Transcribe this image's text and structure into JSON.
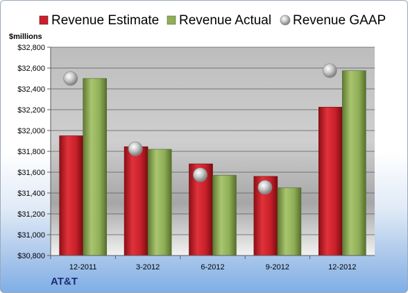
{
  "company": "AT&T",
  "chart_data": {
    "type": "bar",
    "ylabel": "$millions",
    "categories": [
      "12-2011",
      "3-2012",
      "6-2012",
      "9-2012",
      "12-2012"
    ],
    "series": [
      {
        "name": "Revenue Estimate",
        "type": "bar",
        "color": "#c8202a",
        "values": [
          31950,
          31845,
          31680,
          31560,
          32225
        ]
      },
      {
        "name": "Revenue Actual",
        "type": "bar",
        "color": "#8fae57",
        "values": [
          32500,
          31820,
          31570,
          31450,
          32575
        ]
      },
      {
        "name": "Revenue GAAP",
        "type": "marker",
        "color": "#b8b8b8",
        "values": [
          32500,
          31825,
          31575,
          31455,
          32575
        ]
      }
    ],
    "ylim": [
      30800,
      32800
    ],
    "yticks": [
      "$30,800",
      "$31,000",
      "$31,200",
      "$31,400",
      "$31,600",
      "$31,800",
      "$32,000",
      "$32,200",
      "$32,400",
      "$32,600",
      "$32,800"
    ],
    "ytick_values": [
      30800,
      31000,
      31200,
      31400,
      31600,
      31800,
      32000,
      32200,
      32400,
      32600,
      32800
    ],
    "grid": true,
    "legend_position": "top"
  }
}
